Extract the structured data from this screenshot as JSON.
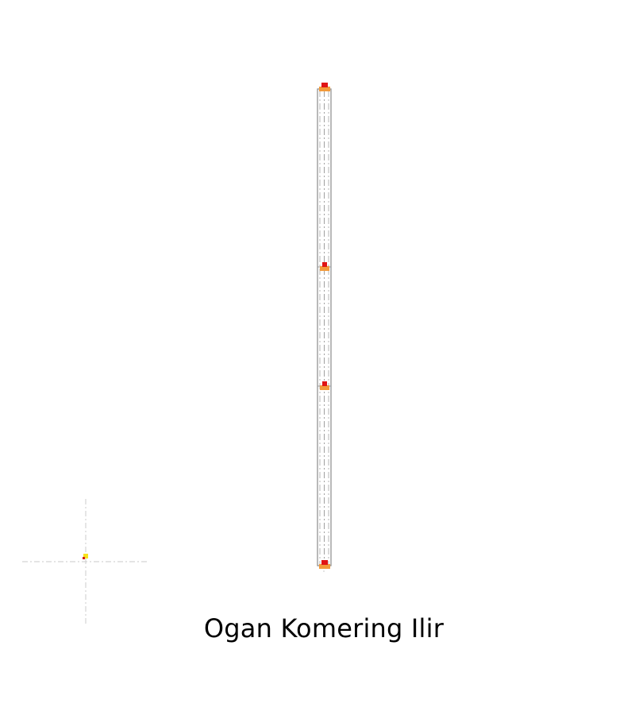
{
  "map": {
    "region_name": "Ogan Komering Ilir",
    "district_count": 4,
    "colors": {
      "boundary": "#8a8a8a",
      "boundary_dash": "#b5b5b5",
      "district_fill": "#ffffff",
      "marker_base": "#f29a3a",
      "marker_top": "#e01414",
      "locator_crosshair": "#d4d4d4",
      "locator_dot": "#f7e21b",
      "locator_dot_accent": "#d21c1c"
    },
    "icons": {
      "district_marker": "district-marker-icon",
      "locator": "crosshair-icon"
    }
  }
}
